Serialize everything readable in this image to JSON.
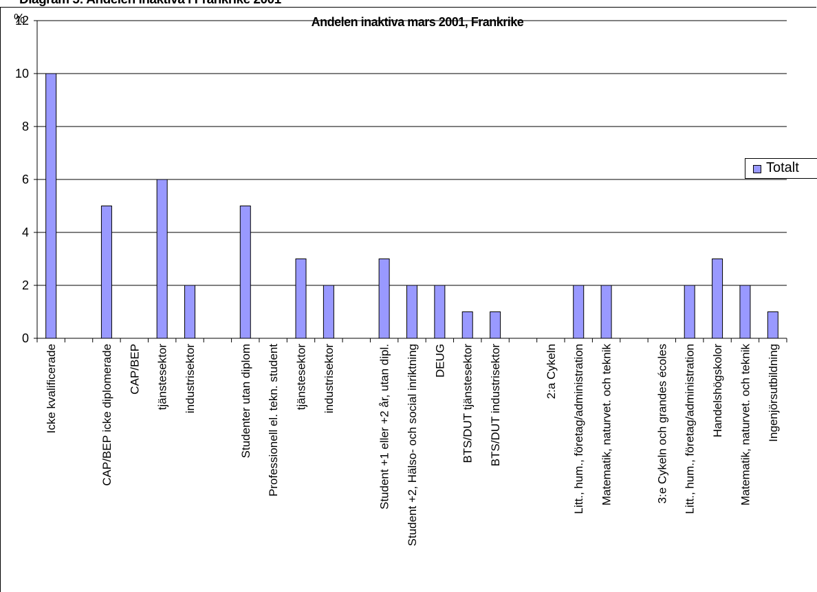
{
  "caption": "Diagram 5: Andelen inaktiva i Frankrike 2001",
  "chart_data": {
    "type": "bar",
    "title": "Andelen inaktiva mars 2001, Frankrike",
    "ylabel": "%",
    "xlabel": "",
    "ylim": [
      0,
      12
    ],
    "yticks": [
      0,
      2,
      4,
      6,
      8,
      10,
      12
    ],
    "grid": true,
    "legend_position": "right",
    "bar_color": "#9999ff",
    "categories": [
      "Icke kvalificerade",
      "",
      "CAP/BEP icke diplomerade",
      "CAP/BEP",
      "tjänstesektor",
      "industrisektor",
      "",
      "Studenter utan diplom",
      "Professionell el. tekn. student",
      "tjänstesektor",
      "industrisektor",
      "",
      "Student +1 eller +2 år, utan dipl.",
      "Student +2, Hälso- och social inriktning",
      "DEUG",
      "BTS/DUT tjänstesektor",
      "BTS/DUT industrisektor",
      "",
      "2:a Cykeln",
      "Litt., hum., företag/administration",
      "Matematik, naturvet. och teknik",
      "",
      "3:e Cykeln och grandes écoles",
      "Litt., hum., företag/administration",
      "Handelshögskolor",
      "Matematik, naturvet. och teknik",
      "Ingenjörsutbildning"
    ],
    "series": [
      {
        "name": "Totalt",
        "values": [
          10,
          null,
          5,
          null,
          6,
          2,
          null,
          5,
          null,
          3,
          2,
          null,
          3,
          2,
          2,
          1,
          1,
          null,
          null,
          2,
          2,
          null,
          null,
          2,
          3,
          2,
          1
        ]
      }
    ]
  }
}
